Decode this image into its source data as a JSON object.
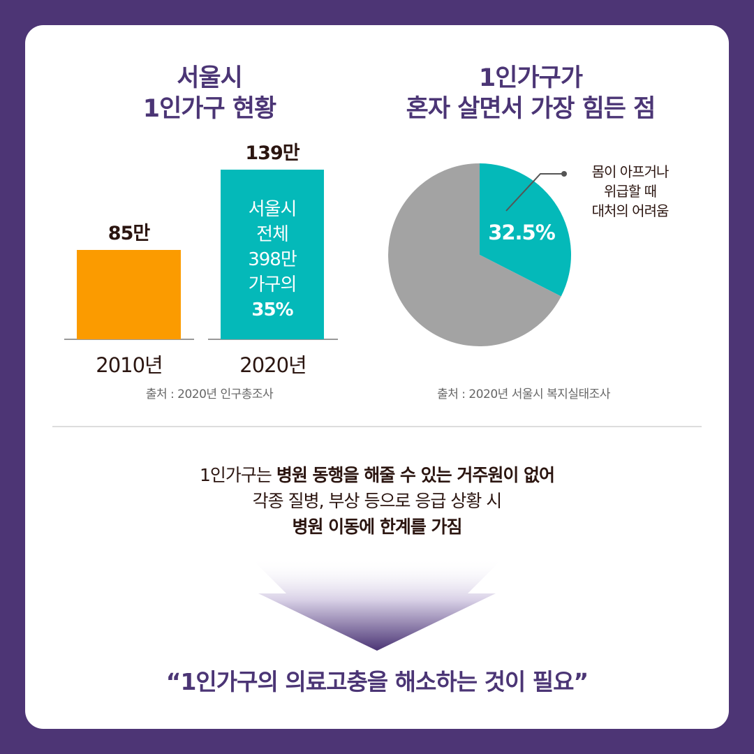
{
  "left": {
    "title_line1": "서울시",
    "title_line2": "1인가구 현황",
    "source": "출처 : 2020년 인구총조사",
    "in_bar_lines": [
      "서울시",
      "전체",
      "398만",
      "가구의"
    ],
    "in_bar_emphasis": "35%"
  },
  "right": {
    "title_line1": "1인가구가",
    "title_line2": "혼자 살면서 가장 힘든 점",
    "source": "출처 : 2020년 서울시 복지실태조사",
    "callout_lines": [
      "몸이 아프거나",
      "위급할 때",
      "대처의 어려움"
    ]
  },
  "chart_data": [
    {
      "type": "bar",
      "categories": [
        "2010년",
        "2020년"
      ],
      "values": [
        85,
        139
      ],
      "data_labels": [
        "85만",
        "139만"
      ],
      "colors": [
        "#fb9b00",
        "#04b9b9"
      ],
      "ylim": [
        25,
        140
      ],
      "grid": false
    },
    {
      "type": "pie",
      "slices": [
        {
          "label": "몸이 아프거나 위급할 때 대처의 어려움",
          "value": 32.5,
          "data_label": "32.5%",
          "color": "#04b9b9"
        },
        {
          "value": 67.5,
          "color": "#a3a3a3"
        }
      ]
    }
  ],
  "bottom": {
    "line1_plain": "1인가구는 ",
    "line1_bold": "병원 동행을 해줄 수 있는 거주원이 없어",
    "line2": "각종 질병, 부상 등으로 응급 상황 시",
    "line3_bold": "병원 이동에 한계를 가짐",
    "conclusion": "“1인가구의 의료고충을 해소하는 것이 필요”"
  },
  "colors": {
    "background": "#4d3575",
    "accent_purple": "#4b3575",
    "teal": "#04b9b9",
    "orange": "#fb9b00",
    "gray": "#a3a3a3"
  }
}
